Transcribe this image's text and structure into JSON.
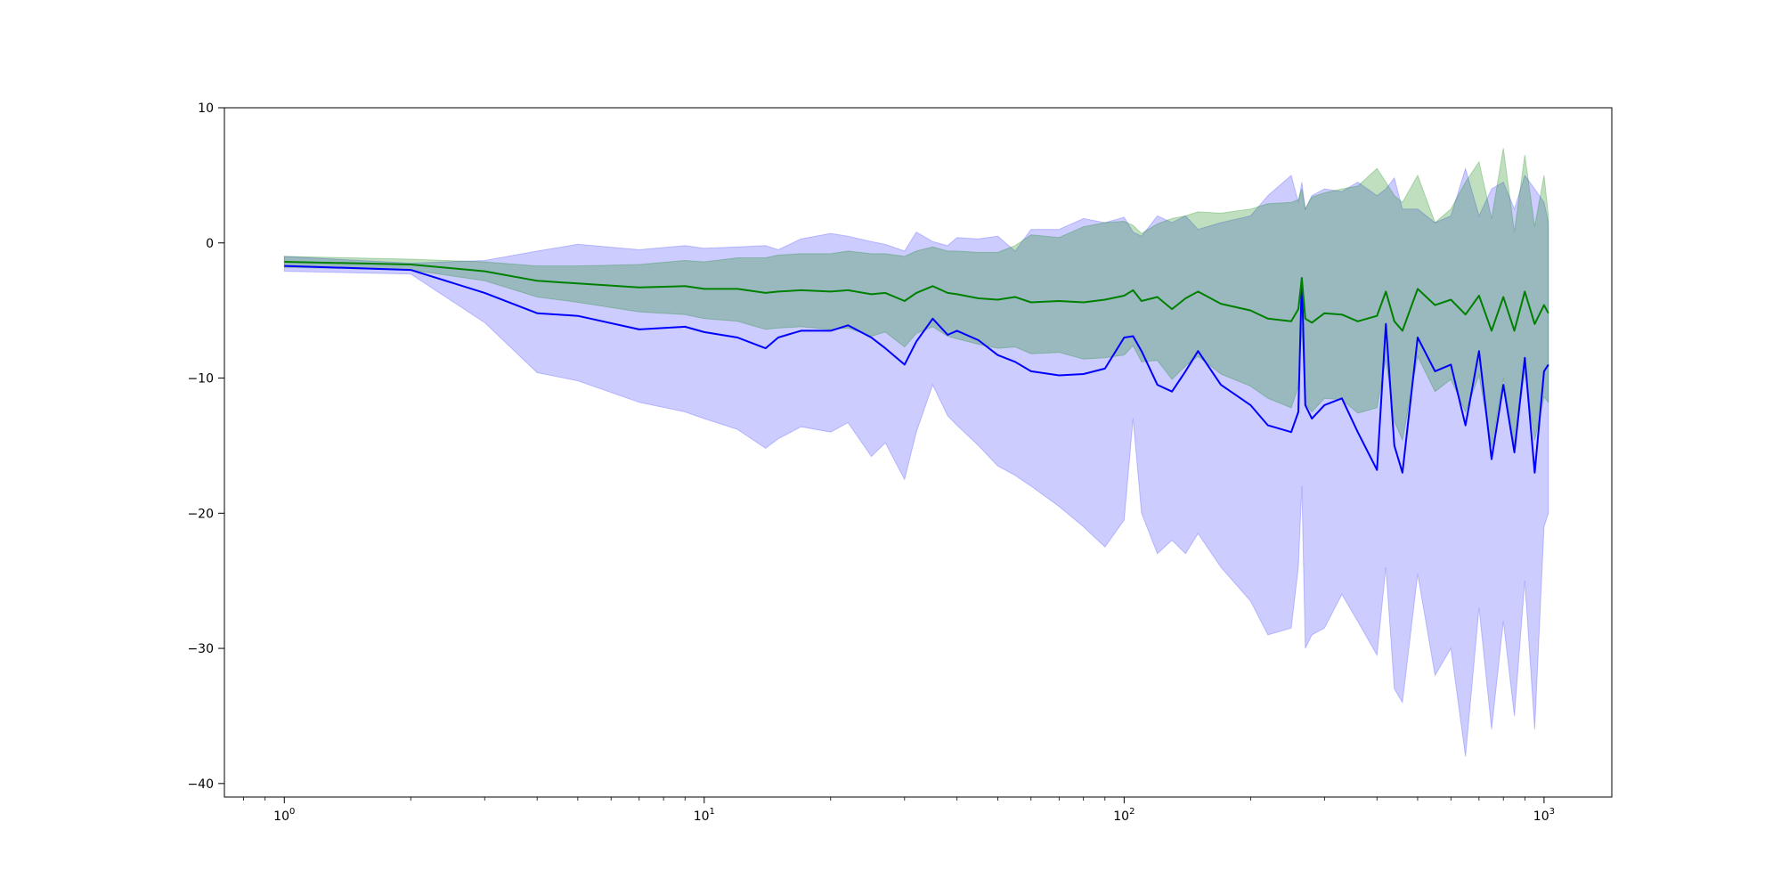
{
  "chart_data": {
    "type": "line",
    "title": "",
    "xlabel": "",
    "ylabel": "",
    "xscale": "log",
    "xlim": [
      0.72,
      1450
    ],
    "ylim": [
      -41,
      10
    ],
    "grid": false,
    "x_ticks": [
      {
        "value": 1,
        "base": "10",
        "exp": "0"
      },
      {
        "value": 10,
        "base": "10",
        "exp": "1"
      },
      {
        "value": 100,
        "base": "10",
        "exp": "2"
      },
      {
        "value": 1000,
        "base": "10",
        "exp": "3"
      }
    ],
    "y_ticks": [
      {
        "value": 10,
        "label": "10"
      },
      {
        "value": 0,
        "label": "0"
      },
      {
        "value": -10,
        "label": "−10"
      },
      {
        "value": -20,
        "label": "−20"
      },
      {
        "value": -30,
        "label": "−30"
      },
      {
        "value": -40,
        "label": "−40"
      }
    ],
    "series": [
      {
        "color": "#0000ff",
        "band_color": "#0000ff",
        "band_opacity": 0.2,
        "x": [
          1,
          2,
          3,
          4,
          5,
          7,
          9,
          10,
          12,
          14,
          15,
          17,
          20,
          22,
          25,
          27,
          30,
          32,
          35,
          38,
          40,
          45,
          50,
          55,
          60,
          70,
          80,
          90,
          100,
          105,
          110,
          120,
          130,
          140,
          150,
          170,
          200,
          220,
          250,
          260,
          265,
          270,
          280,
          300,
          330,
          360,
          400,
          420,
          440,
          460,
          500,
          550,
          600,
          650,
          700,
          750,
          800,
          850,
          900,
          950,
          1000,
          1024
        ],
        "y": [
          -1.7,
          -2.0,
          -3.7,
          -5.2,
          -5.4,
          -6.4,
          -6.2,
          -6.6,
          -7.0,
          -7.8,
          -7.0,
          -6.5,
          -6.5,
          -6.1,
          -7.0,
          -7.8,
          -9.0,
          -7.3,
          -5.6,
          -6.8,
          -6.5,
          -7.2,
          -8.3,
          -8.8,
          -9.5,
          -9.8,
          -9.7,
          -9.3,
          -7.0,
          -6.9,
          -8.0,
          -10.5,
          -11.0,
          -9.5,
          -8.0,
          -10.5,
          -12.0,
          -13.5,
          -14.0,
          -12.5,
          -2.6,
          -12.0,
          -13.0,
          -12.0,
          -11.5,
          -14.0,
          -16.8,
          -6.0,
          -15.0,
          -17.0,
          -7.0,
          -9.5,
          -9.0,
          -13.5,
          -8.0,
          -16.0,
          -10.5,
          -15.5,
          -8.5,
          -17.0,
          -9.5,
          -9.0
        ],
        "lower": [
          -2.1,
          -2.3,
          -5.9,
          -9.6,
          -10.2,
          -11.8,
          -12.5,
          -13.0,
          -13.8,
          -15.2,
          -14.5,
          -13.6,
          -14.0,
          -13.3,
          -15.8,
          -14.8,
          -17.5,
          -14.0,
          -10.5,
          -12.8,
          -13.5,
          -15.0,
          -16.5,
          -17.2,
          -18.0,
          -19.5,
          -21.0,
          -22.5,
          -20.5,
          -13.0,
          -20.0,
          -23.0,
          -22.0,
          -23.0,
          -21.5,
          -24.0,
          -26.5,
          -29.0,
          -28.5,
          -24.0,
          -18.0,
          -30.0,
          -29.0,
          -28.5,
          -26.0,
          -28.0,
          -30.5,
          -24.0,
          -33.0,
          -34.0,
          -24.5,
          -32.0,
          -30.0,
          -38.0,
          -27.0,
          -36.0,
          -28.0,
          -35.0,
          -25.0,
          -36.0,
          -21.0,
          -20.0
        ],
        "upper": [
          -1.0,
          -1.5,
          -1.3,
          -0.6,
          -0.1,
          -0.5,
          -0.2,
          -0.4,
          -0.3,
          -0.2,
          -0.5,
          0.3,
          0.7,
          0.5,
          0.1,
          -0.1,
          -0.6,
          0.8,
          0.1,
          -0.2,
          0.4,
          0.3,
          0.5,
          -0.6,
          1.0,
          1.0,
          1.8,
          1.5,
          1.9,
          0.8,
          0.5,
          2.0,
          1.5,
          2.0,
          1.0,
          1.5,
          2.0,
          3.5,
          5.0,
          3.0,
          4.5,
          2.5,
          3.5,
          4.0,
          3.8,
          4.5,
          3.5,
          4.0,
          4.8,
          2.5,
          2.5,
          1.5,
          2.0,
          5.5,
          2.0,
          4.0,
          4.5,
          2.5,
          5.0,
          4.0,
          3.0,
          1.5
        ]
      },
      {
        "color": "#008000",
        "band_color": "#008000",
        "band_opacity": 0.25,
        "x": [
          1,
          2,
          3,
          4,
          5,
          7,
          9,
          10,
          12,
          14,
          15,
          17,
          20,
          22,
          25,
          27,
          30,
          32,
          35,
          38,
          40,
          45,
          50,
          55,
          60,
          70,
          80,
          90,
          100,
          105,
          110,
          120,
          130,
          140,
          150,
          170,
          200,
          220,
          250,
          260,
          265,
          270,
          280,
          300,
          330,
          360,
          400,
          420,
          440,
          460,
          500,
          550,
          600,
          650,
          700,
          750,
          800,
          850,
          900,
          950,
          1000,
          1024
        ],
        "y": [
          -1.4,
          -1.6,
          -2.1,
          -2.8,
          -3.0,
          -3.3,
          -3.2,
          -3.4,
          -3.4,
          -3.7,
          -3.6,
          -3.5,
          -3.6,
          -3.5,
          -3.8,
          -3.7,
          -4.3,
          -3.7,
          -3.2,
          -3.7,
          -3.8,
          -4.1,
          -4.2,
          -4.0,
          -4.4,
          -4.3,
          -4.4,
          -4.2,
          -3.9,
          -3.5,
          -4.3,
          -4.0,
          -4.9,
          -4.1,
          -3.6,
          -4.5,
          -5.0,
          -5.6,
          -5.8,
          -4.9,
          -2.6,
          -5.6,
          -5.9,
          -5.2,
          -5.3,
          -5.8,
          -5.4,
          -3.6,
          -5.8,
          -6.5,
          -3.4,
          -4.6,
          -4.2,
          -5.3,
          -3.9,
          -6.5,
          -4.0,
          -6.5,
          -3.6,
          -6.0,
          -4.6,
          -5.2
        ],
        "lower": [
          -1.8,
          -2.0,
          -2.8,
          -4.0,
          -4.4,
          -5.1,
          -5.3,
          -5.6,
          -5.8,
          -6.4,
          -6.3,
          -6.2,
          -6.4,
          -6.3,
          -6.9,
          -6.6,
          -7.7,
          -6.7,
          -6.2,
          -6.9,
          -7.1,
          -7.5,
          -7.8,
          -7.7,
          -8.2,
          -8.1,
          -8.6,
          -8.5,
          -8.3,
          -7.6,
          -8.8,
          -8.7,
          -10.1,
          -9.1,
          -8.4,
          -9.7,
          -10.6,
          -11.5,
          -12.2,
          -10.6,
          -6.3,
          -11.9,
          -12.5,
          -11.5,
          -11.6,
          -12.6,
          -12.2,
          -8.6,
          -13.2,
          -14.6,
          -8.4,
          -11.0,
          -10.1,
          -12.5,
          -9.8,
          -15.1,
          -10.0,
          -15.0,
          -9.5,
          -14.6,
          -11.4,
          -11.8
        ],
        "upper": [
          -1.0,
          -1.2,
          -1.4,
          -1.7,
          -1.7,
          -1.6,
          -1.3,
          -1.4,
          -1.1,
          -1.1,
          -0.9,
          -0.8,
          -0.8,
          -0.6,
          -0.8,
          -0.8,
          -1.0,
          -0.6,
          -0.3,
          -0.6,
          -0.6,
          -0.7,
          -0.7,
          -0.2,
          0.6,
          0.4,
          1.2,
          1.5,
          1.6,
          1.3,
          0.7,
          1.4,
          1.8,
          2.0,
          2.3,
          2.2,
          2.5,
          2.9,
          3.0,
          3.2,
          4.0,
          2.5,
          3.4,
          3.7,
          4.0,
          4.2,
          5.5,
          4.5,
          3.5,
          3.0,
          5.0,
          1.5,
          2.5,
          4.5,
          6.0,
          1.8,
          7.0,
          0.8,
          6.5,
          1.2,
          5.0,
          2.0
        ]
      }
    ]
  }
}
